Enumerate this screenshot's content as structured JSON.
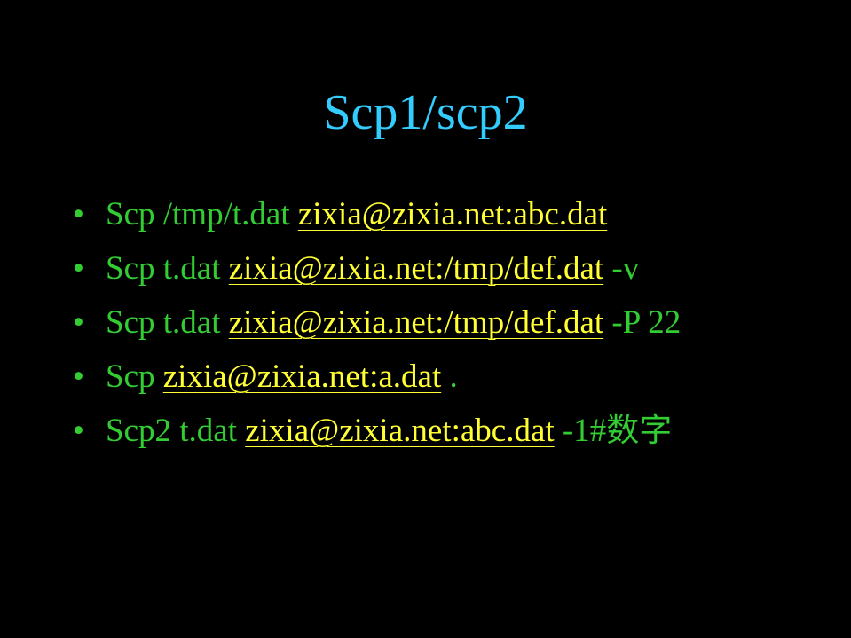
{
  "title": "Scp1/scp2",
  "bullet_symbol": "•",
  "bullets": [
    {
      "cmd": "Scp /tmp/t.dat ",
      "link": "zixia@zixia.net:abc.dat",
      "suffix": ""
    },
    {
      "cmd": "Scp t.dat ",
      "link": "zixia@zixia.net:/tmp/def.dat",
      "suffix": " -v"
    },
    {
      "cmd": "Scp t.dat ",
      "link": "zixia@zixia.net:/tmp/def.dat",
      "suffix": " -P 22"
    },
    {
      "cmd": "Scp ",
      "link": "zixia@zixia.net:a.dat",
      "suffix": " ."
    },
    {
      "cmd": "Scp2 t.dat ",
      "link": "zixia@zixia.net:abc.dat",
      "suffix": " -1#数字"
    }
  ],
  "colors": {
    "background": "#000000",
    "title": "#33ccff",
    "text": "#33cc33",
    "link": "#ffff33"
  }
}
